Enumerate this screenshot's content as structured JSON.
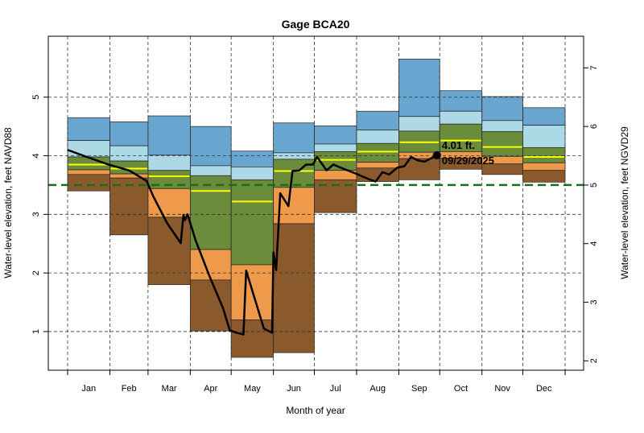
{
  "chart_data": {
    "type": "area",
    "title": "Gage BCA20",
    "xlabel": "Month of year",
    "ylabel": "Water-level elevation, feet NAVD88",
    "ylabel_right": "Water-level elevation, feet NGVD29",
    "categories": [
      "Jan",
      "Feb",
      "Mar",
      "Apr",
      "May",
      "Jun",
      "Jul",
      "Aug",
      "Sep",
      "Oct",
      "Nov",
      "Dec"
    ],
    "ylim": [
      0.34,
      6.04
    ],
    "yticks_left": [
      1,
      2,
      3,
      4,
      5
    ],
    "yticks_right": [
      2,
      3,
      4,
      5,
      6,
      7
    ],
    "right_axis_offset": 1.5,
    "grid": true,
    "band_colors": {
      "upper": "#68a5cf",
      "upper_mid": "#add8e6",
      "mid": "#6b8c3a",
      "lower_mid": "#ee9a4a",
      "lower": "#8a5a2c",
      "median": "#ffff00"
    },
    "bands": {
      "top": [
        4.65,
        4.58,
        4.68,
        4.5,
        4.08,
        4.56,
        4.51,
        4.76,
        5.65,
        5.11,
        5.01,
        4.82
      ],
      "upper_mid": [
        4.26,
        4.17,
        4.01,
        3.83,
        3.81,
        4.05,
        4.2,
        4.44,
        4.67,
        4.76,
        4.6,
        4.52
      ],
      "mid": [
        3.98,
        3.91,
        3.75,
        3.66,
        3.59,
        3.94,
        4.07,
        4.21,
        4.42,
        4.54,
        4.41,
        4.14
      ],
      "median": [
        3.85,
        3.78,
        3.65,
        3.4,
        3.22,
        3.74,
        3.93,
        4.07,
        4.23,
        4.26,
        4.15,
        3.98
      ],
      "lower_mid": [
        3.76,
        3.69,
        3.44,
        2.4,
        2.14,
        3.46,
        3.75,
        3.89,
        4.06,
        4.07,
        3.99,
        3.88
      ],
      "lower": [
        3.68,
        3.62,
        2.95,
        1.88,
        1.2,
        2.84,
        3.59,
        3.79,
        3.95,
        3.96,
        3.86,
        3.75
      ],
      "bottom": [
        3.4,
        2.65,
        1.8,
        1.01,
        0.56,
        0.64,
        3.03,
        3.56,
        3.59,
        3.77,
        3.68,
        3.55
      ]
    },
    "reference_line": {
      "value": 3.5,
      "color": "#1a6e1a",
      "style": "dashed"
    },
    "series": [
      {
        "x": [
          "01-01",
          "01-15",
          "01-31",
          "02-15",
          "02-28",
          "03-05",
          "03-15",
          "03-25",
          "03-27",
          "03-28",
          "03-30",
          "04-05",
          "04-15",
          "04-25",
          "04-30",
          "05-05",
          "05-10",
          "05-12",
          "05-25",
          "05-31",
          "06-01",
          "06-03",
          "06-06",
          "06-12",
          "06-15",
          "06-20",
          "06-25",
          "06-30",
          "07-03",
          "07-10",
          "07-15",
          "07-20",
          "07-31",
          "08-05",
          "08-10",
          "08-15",
          "08-20",
          "08-25",
          "08-31",
          "09-05",
          "09-10",
          "09-15",
          "09-20",
          "09-29"
        ],
        "values": [
          4.1,
          3.98,
          3.85,
          3.75,
          3.57,
          3.3,
          2.85,
          2.51,
          2.99,
          2.9,
          3.0,
          2.55,
          1.95,
          1.4,
          1.02,
          0.98,
          0.95,
          2.04,
          1.05,
          0.98,
          2.35,
          2.05,
          3.36,
          3.14,
          3.74,
          3.75,
          3.85,
          3.85,
          3.98,
          3.75,
          3.85,
          3.8,
          3.7,
          3.65,
          3.6,
          3.56,
          3.72,
          3.68,
          3.8,
          3.82,
          3.98,
          3.92,
          3.9,
          4.01
        ]
      }
    ],
    "current": {
      "value": 4.01,
      "label": "4.01 ft.",
      "date": "09/29/2025"
    }
  }
}
